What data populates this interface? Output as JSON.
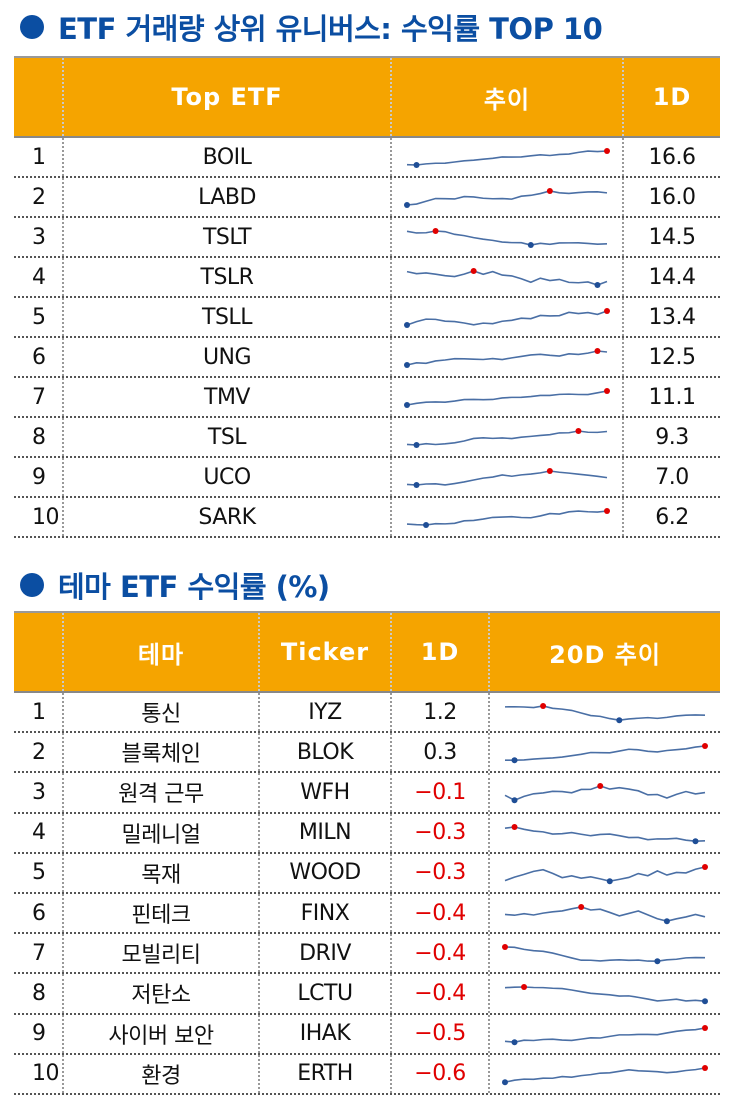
{
  "top10": {
    "title": "ETF 거래량 상위 유니버스: 수익률 TOP 10",
    "header": [
      "Top ETF",
      "추이",
      "1D"
    ],
    "rows": [
      [
        "1",
        "BOIL",
        "16.6"
      ],
      [
        "2",
        "LABD",
        "16.0"
      ],
      [
        "3",
        "TSLT",
        "14.5"
      ],
      [
        "4",
        "TSLR",
        "14.4"
      ],
      [
        "5",
        "TSLL",
        "13.4"
      ],
      [
        "6",
        "UNG",
        "12.5"
      ],
      [
        "7",
        "TMV",
        "11.1"
      ],
      [
        "8",
        "TSL",
        "9.3"
      ],
      [
        "9",
        "UCO",
        "7.0"
      ],
      [
        "10",
        "SARK",
        "6.2"
      ]
    ]
  },
  "theme": {
    "title": "테마 ETF 수익률 (%)",
    "header": [
      "테마",
      "Ticker",
      "1D",
      "20D 추이"
    ],
    "rows": [
      [
        "1",
        "통신",
        "IYZ",
        "1.2"
      ],
      [
        "2",
        "블록체인",
        "BLOK",
        "0.3"
      ],
      [
        "3",
        "원격 근무",
        "WFH",
        "−0.1"
      ],
      [
        "4",
        "밀레니얼",
        "MILN",
        "−0.3"
      ],
      [
        "5",
        "목재",
        "WOOD",
        "−0.3"
      ],
      [
        "6",
        "핀테크",
        "FINX",
        "−0.4"
      ],
      [
        "7",
        "모빌리티",
        "DRIV",
        "−0.4"
      ],
      [
        "8",
        "저탄소",
        "LCTU",
        "−0.4"
      ],
      [
        "9",
        "사이버 보안",
        "IHAK",
        "−0.5"
      ],
      [
        "10",
        "환경",
        "ERTH",
        "−0.6"
      ]
    ]
  }
}
